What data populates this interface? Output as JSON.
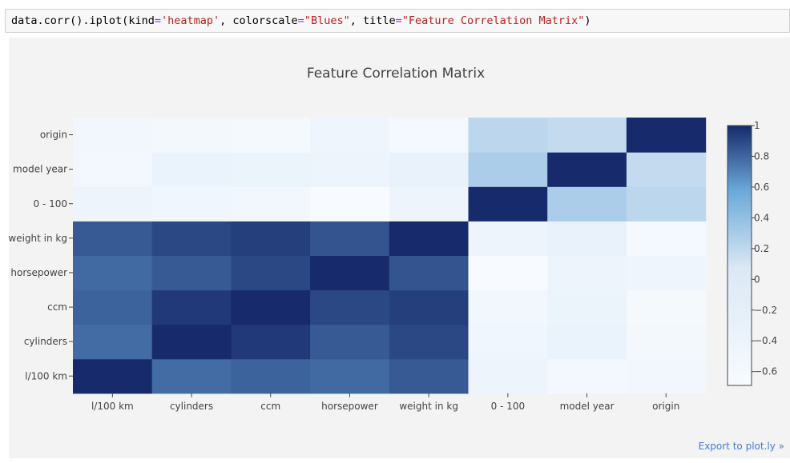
{
  "code": {
    "prefix": "data.corr().iplot(",
    "arg1_name": "kind",
    "eq": "=",
    "arg1_value": "'heatmap'",
    "sep1": ", ",
    "arg2_name": "colorscale",
    "arg2_value": "\"Blues\"",
    "sep2": ", ",
    "arg3_name": "title",
    "arg3_value": "\"Feature Correlation Matrix\"",
    "suffix": ")"
  },
  "export_link": "Export to plot.ly »",
  "colors": {
    "low": "#f7fbff",
    "mid": "#6ba9d9",
    "high": "#172a6b",
    "plot_bg": "#f3f3f3",
    "axis_text": "#444444",
    "link": "#447adb"
  },
  "chart_data": {
    "type": "heatmap",
    "title": "Feature Correlation Matrix",
    "colorscale": "Blues",
    "x_labels": [
      "l/100 km",
      "cylinders",
      "ccm",
      "horsepower",
      "weight in kg",
      "0 - 100",
      "model year",
      "origin"
    ],
    "y_labels": [
      "l/100 km",
      "cylinders",
      "ccm",
      "horsepower",
      "weight in kg",
      "0 - 100",
      "model year",
      "origin"
    ],
    "z": [
      [
        1.0,
        0.78,
        0.81,
        0.79,
        0.84,
        -0.42,
        -0.58,
        -0.52
      ],
      [
        0.78,
        1.0,
        0.95,
        0.84,
        0.9,
        -0.5,
        -0.35,
        -0.57
      ],
      [
        0.81,
        0.95,
        1.0,
        0.9,
        0.93,
        -0.54,
        -0.37,
        -0.61
      ],
      [
        0.79,
        0.84,
        0.9,
        1.0,
        0.86,
        -0.69,
        -0.42,
        -0.45
      ],
      [
        0.84,
        0.9,
        0.93,
        0.86,
        1.0,
        -0.42,
        -0.31,
        -0.59
      ],
      [
        -0.42,
        -0.5,
        -0.54,
        -0.69,
        -0.42,
        1.0,
        0.29,
        0.21
      ],
      [
        -0.58,
        -0.35,
        -0.37,
        -0.42,
        -0.31,
        0.29,
        1.0,
        0.18
      ],
      [
        -0.52,
        -0.57,
        -0.61,
        -0.45,
        -0.59,
        0.21,
        0.18,
        1.0
      ]
    ],
    "zmin": -0.69,
    "zmax": 1.0,
    "colorbar_ticks": [
      "1",
      "0.8",
      "0.6",
      "0.4",
      "0.2",
      "0",
      "−0.2",
      "−0.4",
      "−0.6"
    ],
    "colorbar_tick_values": [
      1,
      0.8,
      0.6,
      0.4,
      0.2,
      0,
      -0.2,
      -0.4,
      -0.6
    ]
  }
}
